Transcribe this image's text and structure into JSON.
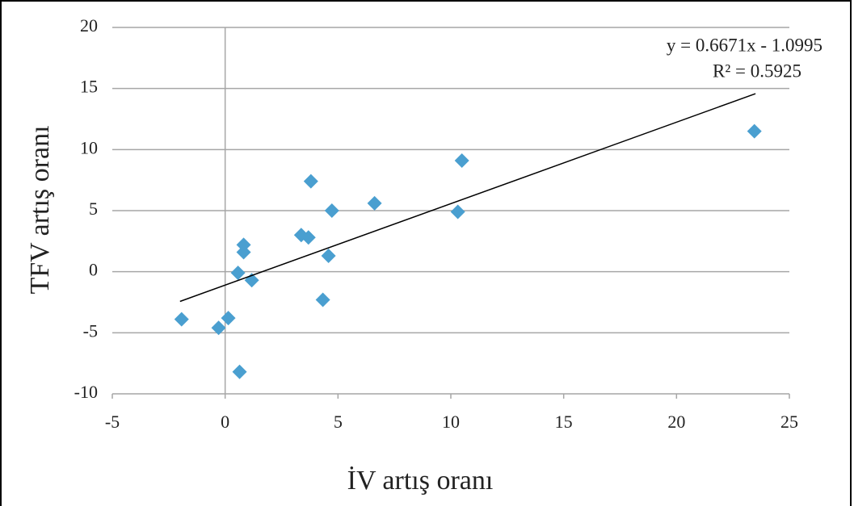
{
  "chart_data": {
    "type": "scatter",
    "x_label": "İV artış oranı",
    "y_label": "TFV artış oranı",
    "series": [
      {
        "color": "#4a9fd0",
        "x": [
          -1.93,
          -0.29,
          0.14,
          0.64,
          0.57,
          0.82,
          0.82,
          1.18,
          3.37,
          3.69,
          3.8,
          4.33,
          4.58,
          4.73,
          6.62,
          10.31,
          10.49,
          23.45
        ],
        "values": [
          -3.9,
          -4.6,
          -3.8,
          -8.2,
          -0.1,
          1.6,
          2.2,
          -0.7,
          3.0,
          2.8,
          7.4,
          -2.3,
          1.3,
          5.0,
          5.6,
          4.9,
          9.1,
          11.5
        ]
      }
    ],
    "trendline": {
      "label": "y = 0.6671x - 1.0995",
      "r2_label": "R² = 0.5925",
      "slope": 0.6671,
      "intercept": -1.0995,
      "x": [
        -2,
        23.5
      ],
      "color": "#000000"
    },
    "xlim": [
      -5,
      25
    ],
    "xticks": [
      -5,
      0,
      5,
      10,
      15,
      20,
      25
    ],
    "ylim": [
      -10,
      20
    ],
    "yticks": [
      -10,
      -5,
      0,
      5,
      10,
      15,
      20
    ],
    "grid": true
  }
}
